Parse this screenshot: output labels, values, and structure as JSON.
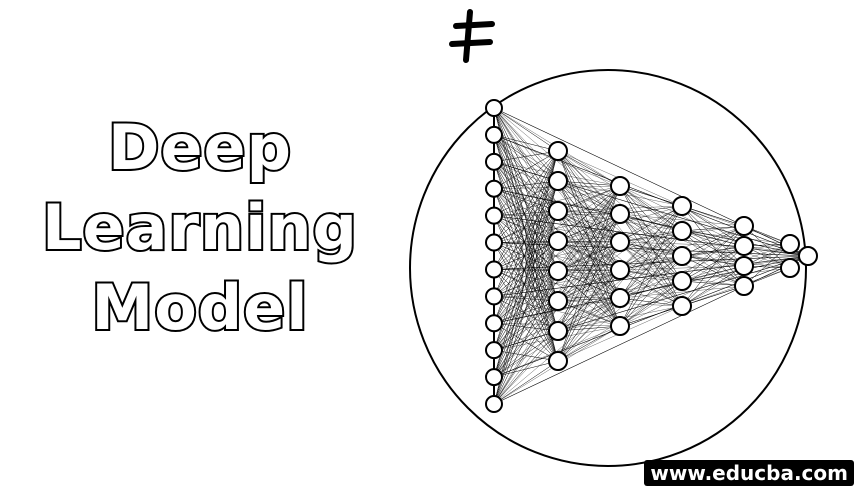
{
  "title": {
    "line1": "Deep",
    "line2": "Learning",
    "line3": "Model"
  },
  "diagram": {
    "subject": "neural-network",
    "layer_sizes": [
      12,
      8,
      6,
      5,
      4,
      2,
      1
    ]
  },
  "watermark": {
    "text": "www.educba.com"
  },
  "colors": {
    "background": "#ffffff",
    "ink": "#000000"
  }
}
